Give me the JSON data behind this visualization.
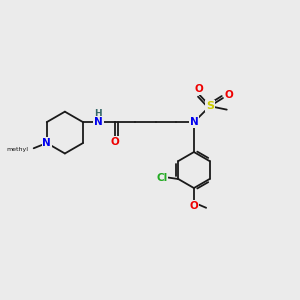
{
  "background_color": "#ebebeb",
  "bond_color": "#1a1a1a",
  "atom_colors": {
    "N": "#0000ee",
    "O": "#ee0000",
    "S": "#cccc00",
    "Cl": "#22aa22",
    "NH": "#336666",
    "H": "#336666"
  },
  "figsize": [
    3.0,
    3.0
  ],
  "dpi": 100
}
